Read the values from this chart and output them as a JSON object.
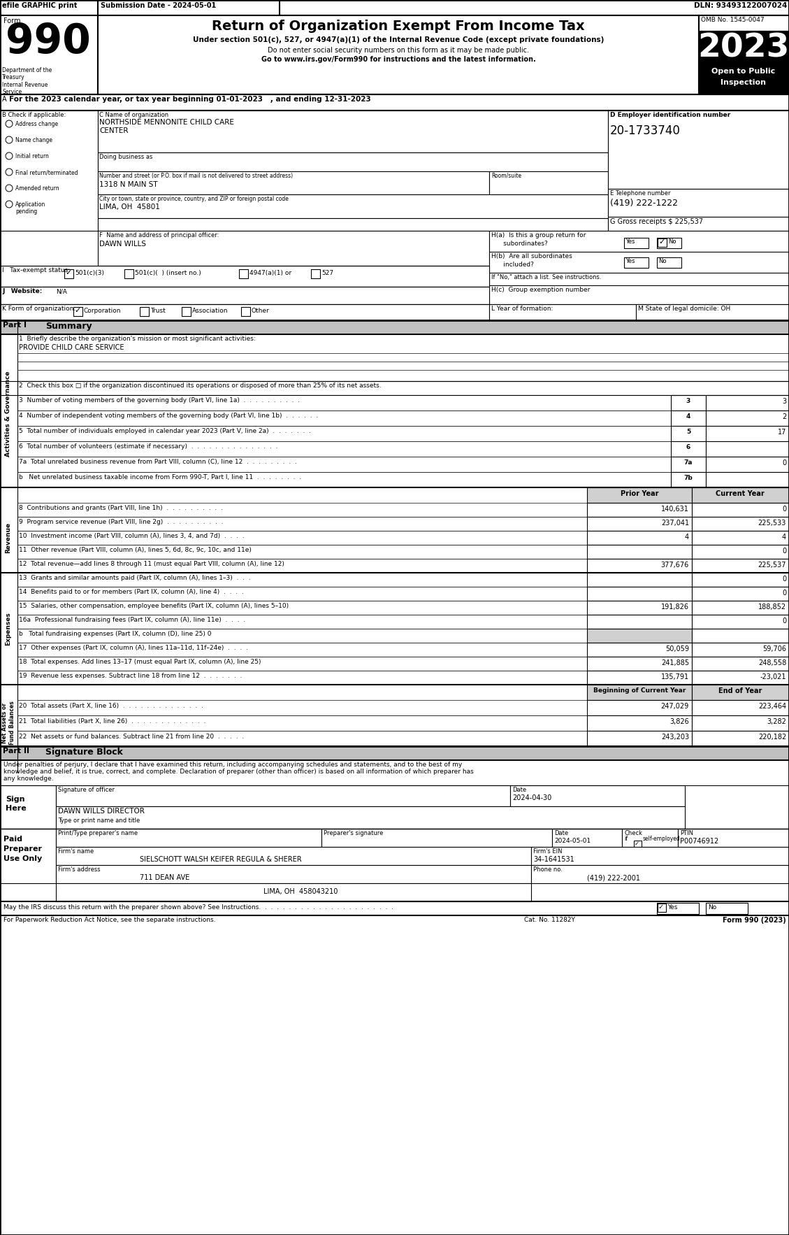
{
  "header_efile": "efile GRAPHIC print",
  "header_submission": "Submission Date - 2024-05-01",
  "header_dln": "DLN: 93493122007024",
  "form_title": "Return of Organization Exempt From Income Tax",
  "form_subtitle1": "Under section 501(c), 527, or 4947(a)(1) of the Internal Revenue Code (except private foundations)",
  "form_subtitle2": "Do not enter social security numbers on this form as it may be made public.",
  "form_subtitle3": "Go to www.irs.gov/Form990 for instructions and the latest information.",
  "omb": "OMB No. 1545-0047",
  "year": "2023",
  "dept": "Department of the\nTreasury\nInternal Revenue\nService",
  "line_A": "For the 2023 calendar year, or tax year beginning 01-01-2023   , and ending 12-31-2023",
  "org_name_line1": "NORTHSIDE MENNONITE CHILD CARE",
  "org_name_line2": "CENTER",
  "doing_business_as": "Doing business as",
  "address_label": "Number and street (or P.O. box if mail is not delivered to street address)",
  "address_val": "1318 N MAIN ST",
  "room_label": "Room/suite",
  "city_label": "City or town, state or province, country, and ZIP or foreign postal code",
  "city_val": "LIMA, OH  45801",
  "ein_label": "D Employer identification number",
  "ein_val": "20-1733740",
  "tel_label": "E Telephone number",
  "tel_val": "(419) 222-1222",
  "gross_label": "G Gross receipts $",
  "gross_val": "225,537",
  "principal_label": "F  Name and address of principal officer:",
  "principal_val": "DAWN WILLS",
  "ha_label": "H(a)  Is this a group return for",
  "ha_sub": "subordinates?",
  "hb_label": "H(b)  Are all subordinates",
  "hb_sub": "included?",
  "hno_note": "If \"No,\" attach a list. See instructions.",
  "hc_label": "H(c)  Group exemption number",
  "tax_label": "I   Tax-exempt status:",
  "website_label": "J   Website:",
  "website_val": "N/A",
  "kform_label": "K Form of organization:",
  "lyear_label": "L Year of formation:",
  "mstate_label": "M State of legal domicile:",
  "mstate_val": "OH",
  "mission_label": "1  Briefly describe the organization's mission or most significant activities:",
  "mission_val": "PROVIDE CHILD CARE SERVICE",
  "line2_text": "2  Check this box",
  "line2_rest": "if the organization discontinued its operations or disposed of more than 25% of its net assets.",
  "line3_label": "3  Number of voting members of the governing body (Part VI, line 1a)  .  .  .  .  .  .  .  .  .  .",
  "line4_label": "4  Number of independent voting members of the governing body (Part VI, line 1b)  .  .  .  .  .  .",
  "line5_label": "5  Total number of individuals employed in calendar year 2023 (Part V, line 2a)  .  .  .  .  .  .  .",
  "line6_label": "6  Total number of volunteers (estimate if necessary)  .  .  .  .  .  .  .  .  .  .  .  .  .  .  .",
  "line7a_label": "7a  Total unrelated business revenue from Part VIII, column (C), line 12  .  .  .  .  .  .  .  .  .",
  "line7b_label": "b   Net unrelated business taxable income from Form 990-T, Part I, line 11  .  .  .  .  .  .  .  .",
  "line3_val": "3",
  "line4_val": "2",
  "line5_val": "17",
  "line6_val": "",
  "line7a_val": "0",
  "line7b_val": "",
  "col_prior": "Prior Year",
  "col_current": "Current Year",
  "line8_label": "8  Contributions and grants (Part VIII, line 1h)  .  .  .  .  .  .  .  .  .  .",
  "line9_label": "9  Program service revenue (Part VIII, line 2g)  .  .  .  .  .  .  .  .  .  .",
  "line10_label": "10  Investment income (Part VIII, column (A), lines 3, 4, and 7d)  .  .  .  .",
  "line11_label": "11  Other revenue (Part VIII, column (A), lines 5, 6d, 8c, 9c, 10c, and 11e)",
  "line12_label": "12  Total revenue—add lines 8 through 11 (must equal Part VIII, column (A), line 12)",
  "line8_prior": "140,631",
  "line8_cur": "0",
  "line9_prior": "237,041",
  "line9_cur": "225,533",
  "line10_prior": "4",
  "line10_cur": "4",
  "line11_prior": "",
  "line11_cur": "0",
  "line12_prior": "377,676",
  "line12_cur": "225,537",
  "line13_label": "13  Grants and similar amounts paid (Part IX, column (A), lines 1–3)  .  .  .",
  "line14_label": "14  Benefits paid to or for members (Part IX, column (A), line 4)  .  .  .  .",
  "line15_label": "15  Salaries, other compensation, employee benefits (Part IX, column (A), lines 5–10)",
  "line16a_label": "16a  Professional fundraising fees (Part IX, column (A), line 11e)  .  .  .  .",
  "line16b_label": "b   Total fundraising expenses (Part IX, column (D), line 25) 0",
  "line17_label": "17  Other expenses (Part IX, column (A), lines 11a–11d, 11f–24e)  .  .  .  .",
  "line18_label": "18  Total expenses. Add lines 13–17 (must equal Part IX, column (A), line 25)",
  "line19_label": "19  Revenue less expenses. Subtract line 18 from line 12  .  .  .  .  .  .  .",
  "line13_prior": "",
  "line13_cur": "0",
  "line14_prior": "",
  "line14_cur": "0",
  "line15_prior": "191,826",
  "line15_cur": "188,852",
  "line16a_prior": "",
  "line16a_cur": "0",
  "line17_prior": "50,059",
  "line17_cur": "59,706",
  "line18_prior": "241,885",
  "line18_cur": "248,558",
  "line19_prior": "135,791",
  "line19_cur": "-23,021",
  "col_boc": "Beginning of Current Year",
  "col_eoy": "End of Year",
  "line20_label": "20  Total assets (Part X, line 16)  .  .  .  .  .  .  .  .  .  .  .  .  .  .",
  "line21_label": "21  Total liabilities (Part X, line 26)  .  .  .  .  .  .  .  .  .  .  .  .  .",
  "line22_label": "22  Net assets or fund balances. Subtract line 21 from line 20  .  .  .  .  .",
  "line20_boc": "247,029",
  "line20_eoy": "223,464",
  "line21_boc": "3,826",
  "line21_eoy": "3,282",
  "line22_boc": "243,203",
  "line22_eoy": "220,182",
  "sig_block_title": "Signature Block",
  "sig_perjury1": "Under penalties of perjury, I declare that I have examined this return, including accompanying schedules and statements, and to the best of my",
  "sig_perjury2": "knowledge and belief, it is true, correct, and complete. Declaration of preparer (other than officer) is based on all information of which preparer has",
  "sig_perjury3": "any knowledge.",
  "sig_officer_label": "Signature of officer",
  "sig_date_label": "Date",
  "sig_date_val": "2024-04-30",
  "sig_name_val": "DAWN WILLS DIRECTOR",
  "sig_name_label": "Type or print name and title",
  "prep_name_label": "Print/Type preparer's name",
  "prep_sig_label": "Preparer's signature",
  "prep_date_label": "Date",
  "prep_date_val": "2024-05-01",
  "prep_check_label": "Check",
  "prep_selfempl": "self-employed",
  "prep_ptin_label": "PTIN",
  "prep_ptin_val": "P00746912",
  "firm_name_label": "Firm's name",
  "firm_name_val": "SIELSCHOTT WALSH KEIFER REGULA & SHERER",
  "firm_ein_label": "Firm's EIN",
  "firm_ein_val": "34-1641531",
  "firm_addr_label": "Firm's address",
  "firm_addr_val": "711 DEAN AVE",
  "firm_phone_label": "Phone no.",
  "firm_phone_val": "(419) 222-2001",
  "firm_city_val": "LIMA, OH  458043210",
  "may_irs": "May the IRS discuss this return with the preparer shown above? See Instructions.  .  .  .  .  .  .  .  .  .  .  .  .  .  .  .  .  .  .  .  .  .  .",
  "footer_left": "For Paperwork Reduction Act Notice, see the separate instructions.",
  "footer_cat": "Cat. No. 11282Y",
  "footer_right": "Form 990 (2023)"
}
